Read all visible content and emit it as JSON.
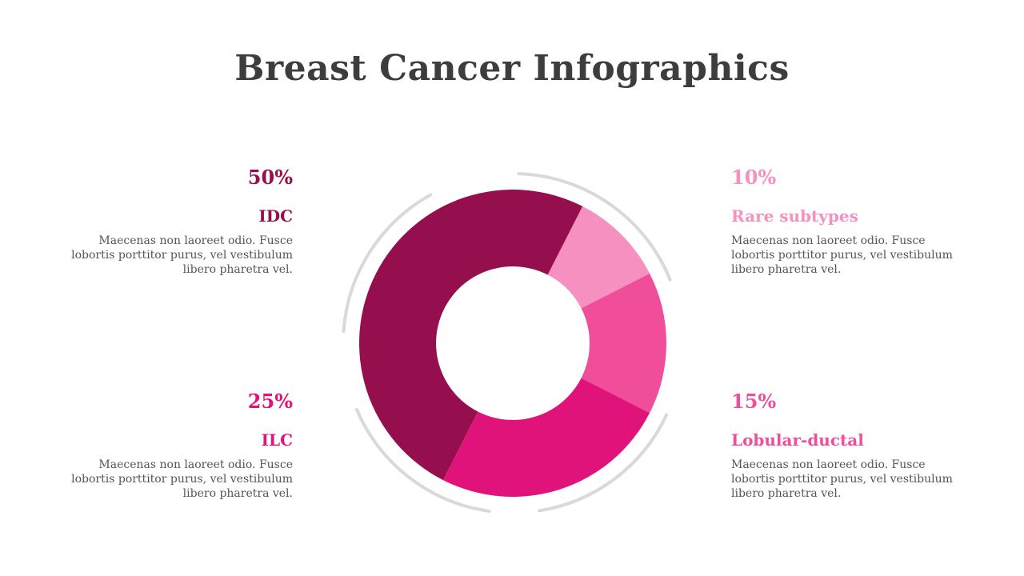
{
  "title": "Breast Cancer Infographics",
  "chart_data": {
    "type": "pie",
    "variant": "donut",
    "categories": [
      "Rare subtypes",
      "Lobular-ductal",
      "ILC",
      "IDC"
    ],
    "values": [
      10,
      15,
      25,
      50
    ],
    "unit": "%",
    "colors": [
      "#f590c0",
      "#f04d9b",
      "#e0137a",
      "#950e4d"
    ]
  },
  "items": {
    "idc": {
      "pct": "50%",
      "name": "IDC",
      "desc": "Maecenas non laoreet odio. Fusce lobortis porttitor purus, vel vestibulum libero pharetra vel.",
      "color": "#950e4d"
    },
    "rare": {
      "pct": "10%",
      "name": "Rare subtypes",
      "desc": "Maecenas non laoreet odio. Fusce lobortis porttitor purus, vel vestibulum libero pharetra vel.",
      "color": "#f590c0"
    },
    "ilc": {
      "pct": "25%",
      "name": "ILC",
      "desc": "Maecenas non laoreet odio. Fusce lobortis porttitor purus, vel vestibulum libero pharetra vel.",
      "color": "#e0137a"
    },
    "lobular": {
      "pct": "15%",
      "name": "Lobular-ductal",
      "desc": "Maecenas non laoreet odio. Fusce lobortis porttitor purus, vel vestibulum libero pharetra vel.",
      "color": "#f04d9b"
    }
  }
}
